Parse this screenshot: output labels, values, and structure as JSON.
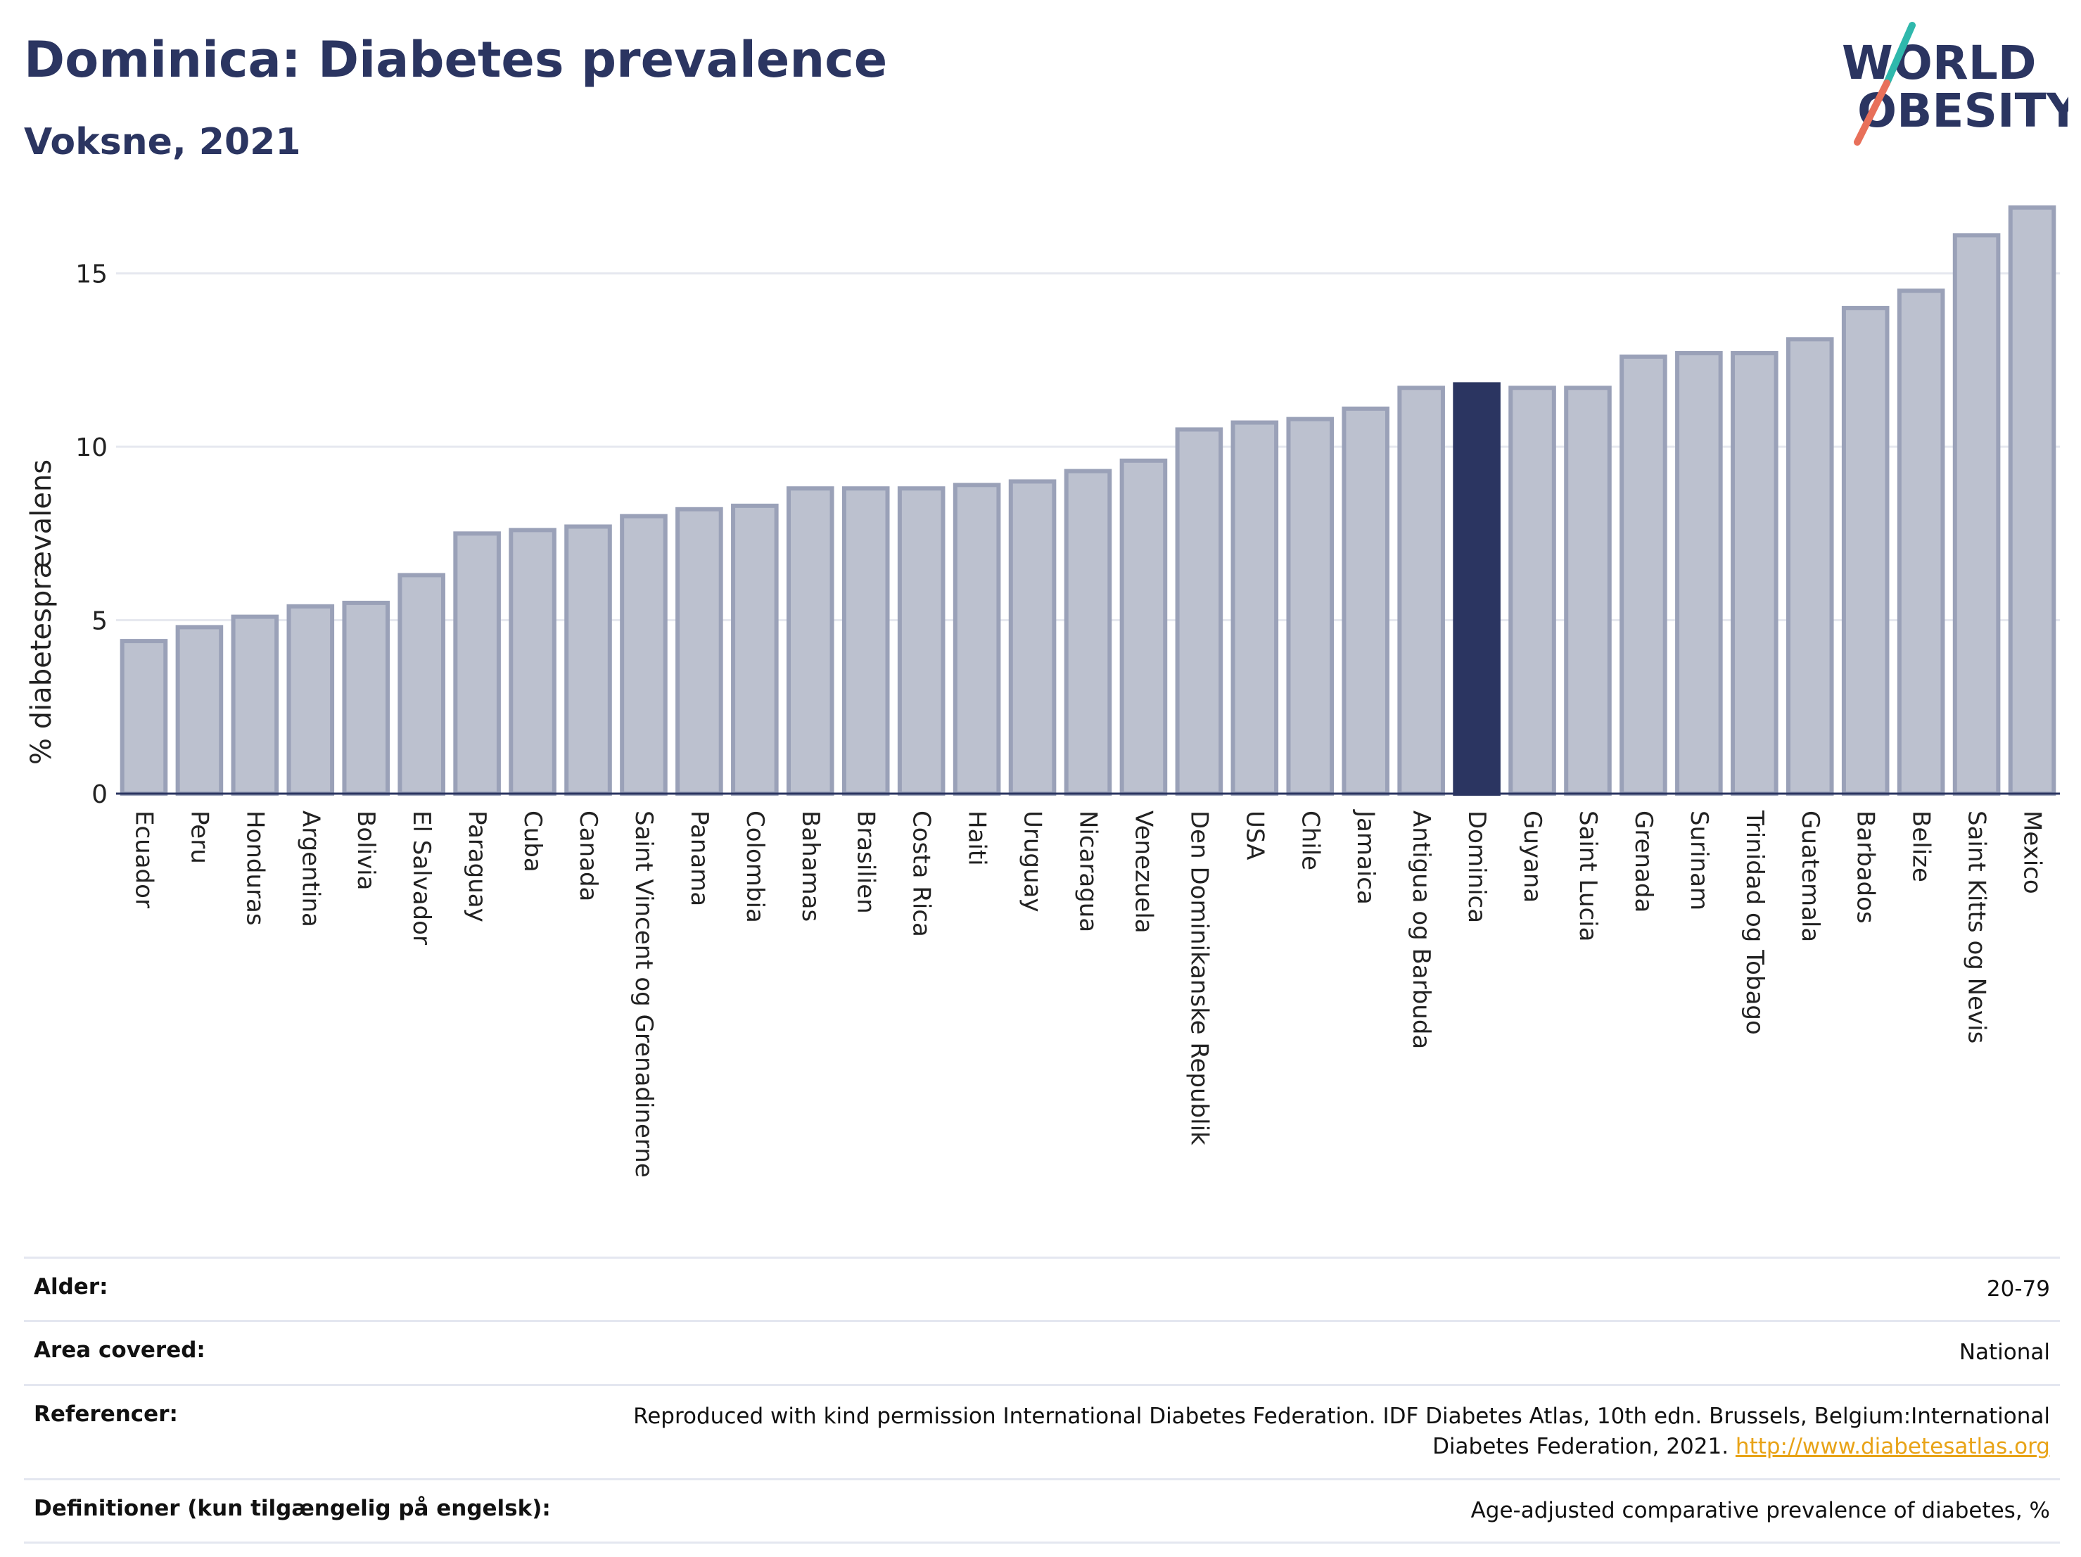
{
  "header": {
    "title": "Dominica: Diabetes prevalence",
    "subtitle": "Voksne, 2021"
  },
  "logo": {
    "line1": "WORLD",
    "line2": "OBESITY",
    "accent_teal": "#2fb8ac",
    "accent_coral": "#e8705a"
  },
  "colors": {
    "bar": "#bcc1cf",
    "bar_border": "#9aa1b8",
    "highlight": "#2b3561",
    "text": "#2b3561"
  },
  "chart_data": {
    "type": "bar",
    "ylabel": "% diabetesprævalens",
    "ylim": [
      0,
      17
    ],
    "yticks": [
      0,
      5,
      10,
      15
    ],
    "grid": true,
    "highlight": "Dominica",
    "categories": [
      "Ecuador",
      "Peru",
      "Honduras",
      "Argentina",
      "Bolivia",
      "El Salvador",
      "Paraguay",
      "Cuba",
      "Canada",
      "Saint Vincent og Grenadinerne",
      "Panama",
      "Colombia",
      "Bahamas",
      "Brasilien",
      "Costa Rica",
      "Haiti",
      "Uruguay",
      "Nicaragua",
      "Venezuela",
      "Den Dominikanske Republik",
      "USA",
      "Chile",
      "Jamaica",
      "Antigua og Barbuda",
      "Dominica",
      "Guyana",
      "Saint Lucia",
      "Grenada",
      "Surinam",
      "Trinidad og Tobago",
      "Guatemala",
      "Barbados",
      "Belize",
      "Saint Kitts og Nevis",
      "Mexico"
    ],
    "values": [
      4.4,
      4.8,
      5.1,
      5.4,
      5.5,
      6.3,
      7.5,
      7.6,
      7.7,
      8.0,
      8.2,
      8.3,
      8.8,
      8.8,
      8.8,
      8.9,
      9.0,
      9.3,
      9.6,
      10.5,
      10.7,
      10.8,
      11.1,
      11.7,
      11.8,
      11.7,
      11.7,
      12.6,
      12.7,
      12.7,
      13.1,
      14.0,
      14.5,
      16.1,
      16.9
    ]
  },
  "meta": {
    "age_label": "Alder:",
    "age_value": "20-79",
    "area_label": "Area covered:",
    "area_value": "National",
    "ref_label": "Referencer:",
    "ref_text": "Reproduced with kind permission International Diabetes Federation.  IDF Diabetes Atlas, 10th edn. Brussels, Belgium:International Diabetes Federation, 2021. ",
    "ref_link": "http://www.diabetesatlas.org",
    "def_label": "Definitioner (kun tilgængelig på engelsk):",
    "def_value": "Age-adjusted comparative prevalence of diabetes, %"
  }
}
